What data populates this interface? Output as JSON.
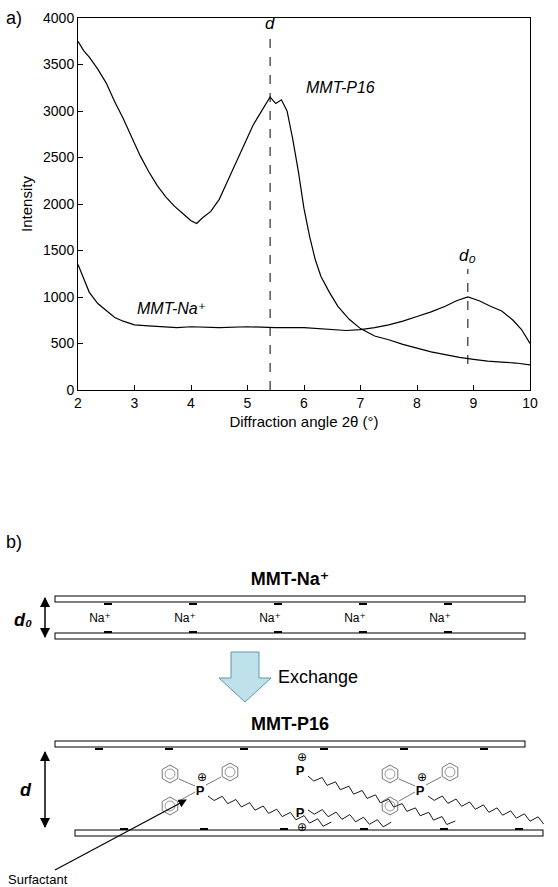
{
  "chart_data": {
    "type": "line",
    "label": "a)",
    "x_label": "Diffraction angle 2θ (°)",
    "y_label": "Intensity",
    "xlim": [
      2,
      10
    ],
    "ylim": [
      0,
      4000
    ],
    "xticks": [
      2,
      3,
      4,
      5,
      6,
      7,
      8,
      9,
      10
    ],
    "yticks": [
      0,
      500,
      1000,
      1500,
      2000,
      2500,
      3000,
      3500,
      4000
    ],
    "grid": false,
    "series": [
      {
        "name": "MMT-P16",
        "color": "#000000",
        "x": [
          2.0,
          2.1,
          2.2,
          2.35,
          2.5,
          2.65,
          2.8,
          2.95,
          3.1,
          3.25,
          3.4,
          3.55,
          3.7,
          3.85,
          4.0,
          4.1,
          4.2,
          4.35,
          4.5,
          4.65,
          4.8,
          4.95,
          5.1,
          5.2,
          5.3,
          5.4,
          5.5,
          5.6,
          5.7,
          5.8,
          5.9,
          6.0,
          6.1,
          6.2,
          6.3,
          6.45,
          6.6,
          6.8,
          7.0,
          7.25,
          7.5,
          7.75,
          8.0,
          8.25,
          8.5,
          8.75,
          9.0,
          9.25,
          9.5,
          9.75,
          10.0
        ],
        "values": [
          3750,
          3650,
          3580,
          3450,
          3300,
          3100,
          2920,
          2720,
          2520,
          2350,
          2200,
          2080,
          1980,
          1900,
          1820,
          1790,
          1850,
          1920,
          2050,
          2250,
          2450,
          2650,
          2850,
          2950,
          3050,
          3150,
          3080,
          3120,
          3000,
          2700,
          2350,
          1950,
          1650,
          1400,
          1220,
          1050,
          900,
          760,
          660,
          580,
          540,
          490,
          450,
          410,
          380,
          350,
          330,
          310,
          300,
          290,
          270
        ]
      },
      {
        "name": "MMT-Na⁺",
        "color": "#000000",
        "x": [
          2.0,
          2.1,
          2.2,
          2.35,
          2.5,
          2.65,
          2.8,
          3.0,
          3.25,
          3.5,
          3.75,
          4.0,
          4.5,
          5.0,
          5.5,
          6.0,
          6.5,
          6.75,
          7.0,
          7.25,
          7.5,
          7.75,
          8.0,
          8.25,
          8.5,
          8.7,
          8.9,
          9.1,
          9.3,
          9.5,
          9.7,
          9.85,
          10.0
        ],
        "values": [
          1350,
          1200,
          1050,
          930,
          850,
          780,
          740,
          700,
          690,
          680,
          670,
          680,
          670,
          680,
          670,
          670,
          650,
          640,
          650,
          670,
          700,
          740,
          790,
          840,
          900,
          960,
          1000,
          960,
          900,
          850,
          750,
          650,
          500
        ]
      }
    ],
    "reference_lines": [
      {
        "x": 5.4,
        "y_from": 0,
        "y_to": 3800,
        "label": "d",
        "line_style": "dashed"
      },
      {
        "x": 8.9,
        "y_from": 280,
        "y_to": 1300,
        "label": "d₀",
        "line_style": "dashed"
      }
    ]
  },
  "diagram": {
    "label": "b)",
    "before": {
      "title": "MMT-Na⁺",
      "spacing": "d₀",
      "ions": [
        "Na⁺",
        "Na⁺",
        "Na⁺",
        "Na⁺",
        "Na⁺"
      ]
    },
    "process": "Exchange",
    "after": {
      "title": "MMT-P16",
      "spacing": "d",
      "cation": "P",
      "charge": "⊕",
      "pointer": "Surfactant"
    }
  }
}
